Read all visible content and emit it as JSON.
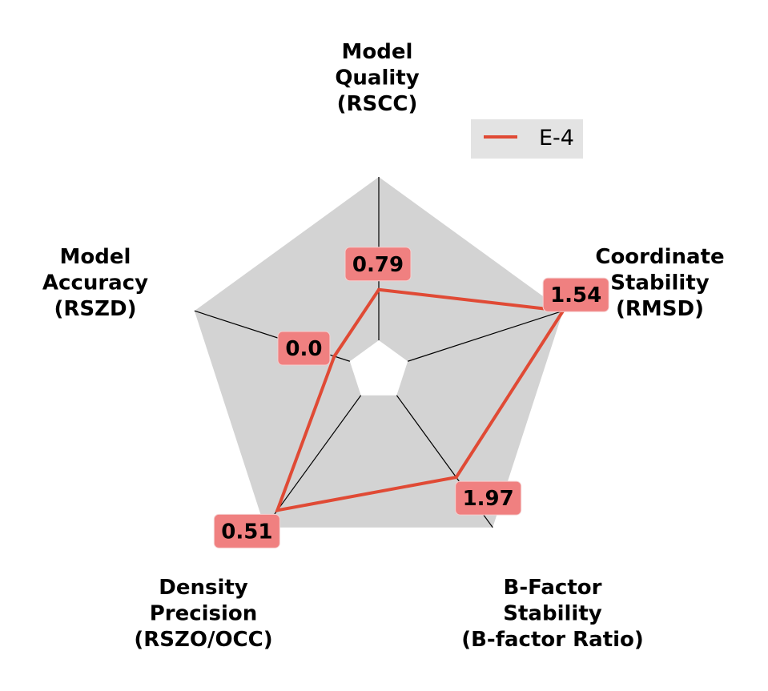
{
  "chart_data": {
    "type": "radar",
    "axes": [
      {
        "label_lines": [
          "Model",
          "Quality",
          "(RSCC)"
        ]
      },
      {
        "label_lines": [
          "Coordinate",
          "Stability",
          "(RMSD)"
        ]
      },
      {
        "label_lines": [
          "B-Factor",
          "Stability",
          "(B-factor Ratio)"
        ]
      },
      {
        "label_lines": [
          "Density",
          "Precision",
          "(RSZO/OCC)"
        ]
      },
      {
        "label_lines": [
          "Model",
          "Accuracy",
          "(RSZD)"
        ]
      }
    ],
    "series": [
      {
        "name": "E-4",
        "color": "#e04a35",
        "values": [
          0.79,
          1.54,
          1.97,
          0.51,
          0.0
        ],
        "value_labels": [
          "0.79",
          "1.54",
          "1.97",
          "0.51",
          "0.0"
        ],
        "normalized_radius": [
          0.31,
          1.0,
          0.62,
          0.87,
          0.1
        ]
      }
    ],
    "background_color": "#d3d3d3",
    "label_box_color": "#f08080",
    "legend": {
      "placement": "top-right",
      "background": "#e3e3e3"
    }
  }
}
